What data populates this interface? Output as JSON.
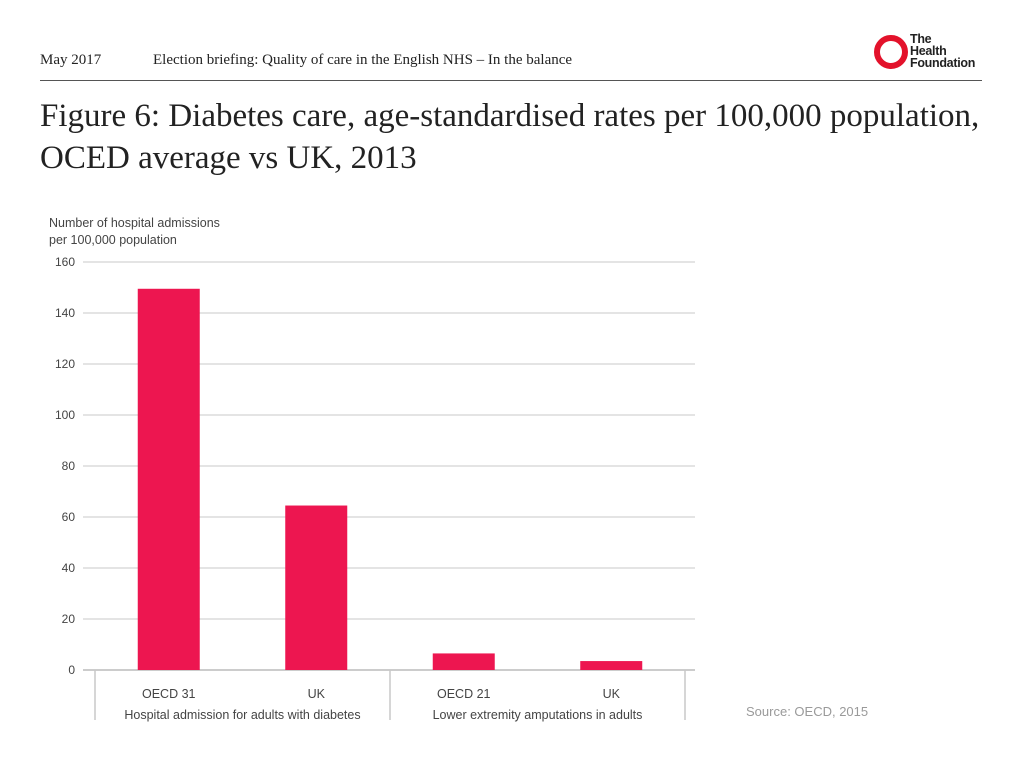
{
  "header": {
    "date": "May 2017",
    "briefing_title": "Election briefing: Quality of care in the English NHS – In the balance"
  },
  "logo": {
    "line1": "The",
    "line2": "Health",
    "line3": "Foundation",
    "icon": "ring-icon"
  },
  "figure": {
    "title": "Figure 6: Diabetes care, age-standardised rates per 100,000 population, OCED average vs UK, 2013"
  },
  "source": "Source: OECD, 2015",
  "colors": {
    "bar": "#ed1650",
    "grid": "#c8c8c8",
    "axis": "#999999",
    "brand": "#e3122b"
  },
  "chart_data": {
    "type": "bar",
    "ylabel_lines": [
      "Number of hospital admissions",
      "per 100,000 population"
    ],
    "ylim": [
      0,
      160
    ],
    "yticks": [
      0,
      20,
      40,
      60,
      80,
      100,
      120,
      140,
      160
    ],
    "grid": true,
    "categories": [
      "OECD 31",
      "UK",
      "OECD 21",
      "UK"
    ],
    "values": [
      149.5,
      64.5,
      6.5,
      3.5
    ],
    "groups": [
      {
        "label": "Hospital admission for adults with diabetes"
      },
      {
        "label": "Lower extremity amputations in adults"
      }
    ]
  }
}
